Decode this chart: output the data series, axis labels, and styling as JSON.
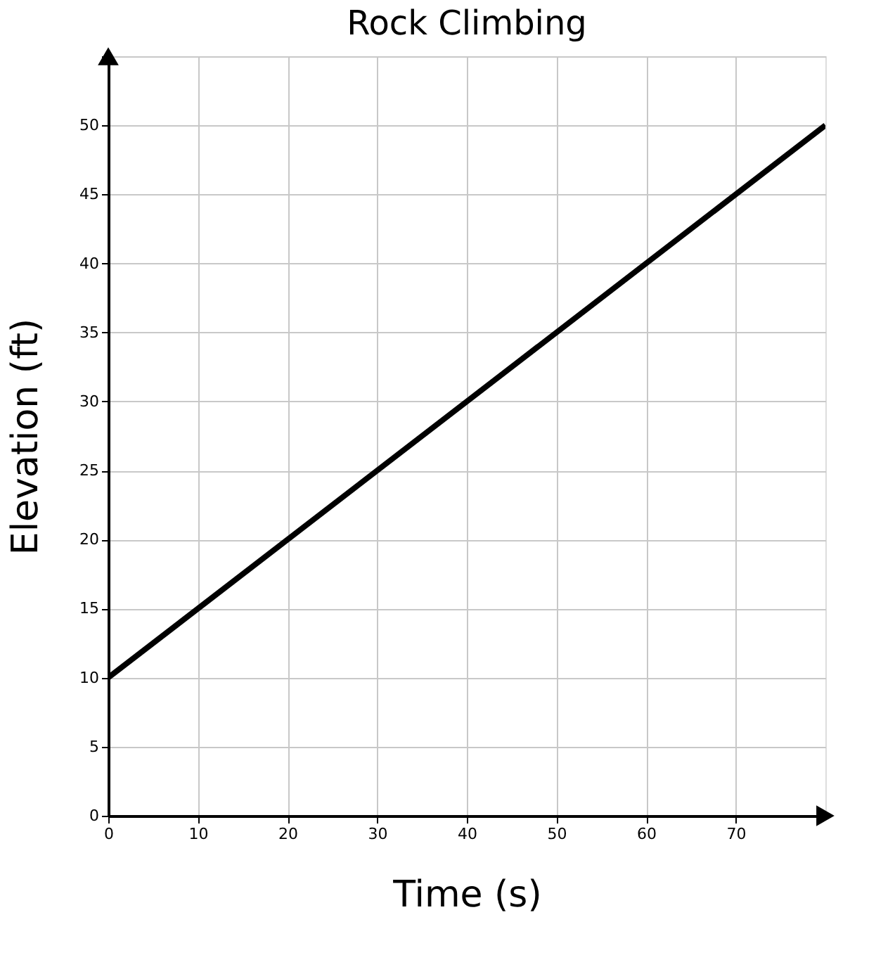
{
  "chart_data": {
    "type": "line",
    "title": "Rock Climbing",
    "xlabel": "Time (s)",
    "ylabel": "Elevation (ft)",
    "x": [
      0,
      80
    ],
    "series": [
      {
        "color": "#000000",
        "values": [
          10,
          50
        ]
      }
    ],
    "xlim": [
      0,
      80
    ],
    "xticks": [
      0,
      10,
      20,
      30,
      40,
      50,
      60,
      70
    ],
    "ylim": [
      0,
      55
    ],
    "yticks": [
      0,
      5,
      10,
      15,
      20,
      25,
      30,
      35,
      40,
      45,
      50,
      {
        "value": 55,
        "label": null
      }
    ],
    "grid": true,
    "marker": "none",
    "line_style": "solid"
  }
}
